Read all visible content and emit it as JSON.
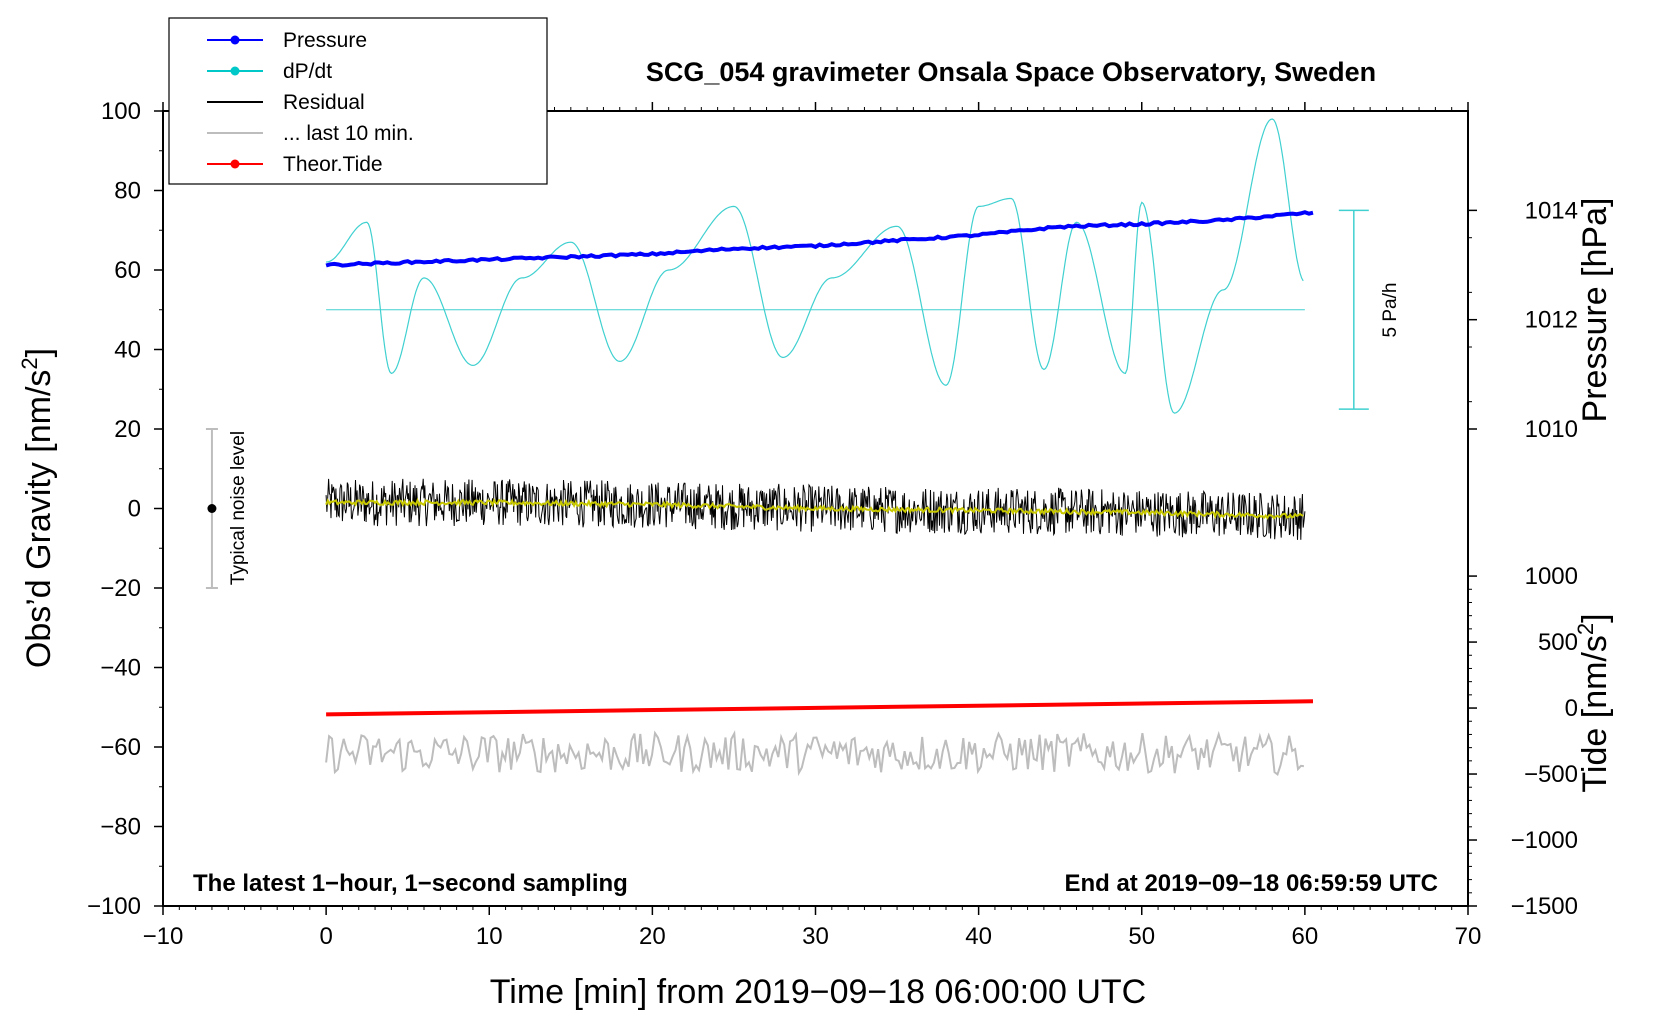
{
  "chart_data": {
    "type": "line",
    "title": "SCG_054 gravimeter Onsala Space Observatory, Sweden",
    "xlabel": "Time [min] from 2019−09−18 06:00:00 UTC",
    "ylabel": "Obs’d Gravity [nm/s",
    "ylabel_sup": "2",
    "ylabel_close": "]",
    "right_pressure_label": "Pressure [hPa]",
    "right_tide_label": "Tide [nm/s",
    "right_tide_sup": "2",
    "right_tide_close": "]",
    "xlim": [
      -10,
      70
    ],
    "ylim": [
      -100,
      100
    ],
    "xticks": [
      "−10",
      "0",
      "10",
      "20",
      "30",
      "40",
      "50",
      "60",
      "70"
    ],
    "xtick_values": [
      -10,
      0,
      10,
      20,
      30,
      40,
      50,
      60,
      70
    ],
    "yticks": [
      "−100",
      "−80",
      "−60",
      "−40",
      "−20",
      "0",
      "20",
      "40",
      "60",
      "80",
      "100"
    ],
    "ytick_values": [
      -100,
      -80,
      -60,
      -40,
      -20,
      0,
      20,
      40,
      60,
      80,
      100
    ],
    "pressure_axis": {
      "range_hPa": [
        1010,
        1014
      ],
      "ticks": [
        "1010",
        "1012",
        "1014"
      ],
      "tick_values": [
        1010,
        1012,
        1014
      ],
      "gravity_equivalent": [
        20,
        75
      ]
    },
    "tide_axis": {
      "range": [
        -1500,
        1000
      ],
      "ticks": [
        "−1500",
        "−1000",
        "−500",
        "0",
        "500",
        "1000"
      ],
      "tick_values": [
        -1500,
        -1000,
        -500,
        0,
        500,
        1000
      ],
      "gravity_equivalent": [
        -100,
        -17
      ]
    },
    "legend": [
      {
        "label": "Pressure",
        "color": "#0000ff",
        "marker": true
      },
      {
        "label": "dP/dt",
        "color": "#00c8c8",
        "marker": true
      },
      {
        "label": "Residual",
        "color": "#000000",
        "marker": false
      },
      {
        "label": "... last 10 min.",
        "color": "#bdbdbd",
        "marker": false
      },
      {
        "label": "Theor.Tide",
        "color": "#ff0000",
        "marker": true
      }
    ],
    "series": [
      {
        "name": "Pressure",
        "color": "#0000ff",
        "x": [
          0,
          5,
          10,
          15,
          20,
          25,
          30,
          35,
          40,
          45,
          50,
          55,
          60
        ],
        "y_hPa": [
          1013.0,
          1013.05,
          1013.1,
          1013.15,
          1013.2,
          1013.3,
          1013.35,
          1013.45,
          1013.55,
          1013.7,
          1013.75,
          1013.82,
          1013.95
        ]
      },
      {
        "name": "dP/dt",
        "color": "#40d0d0",
        "x": [
          0,
          2.5,
          4,
          6,
          9,
          12,
          15,
          18,
          21,
          25,
          28,
          31,
          35,
          38,
          40,
          42,
          44,
          46,
          49,
          50,
          52,
          55,
          58,
          60
        ],
        "y": [
          62,
          72,
          34,
          58,
          36,
          58,
          67,
          37,
          60,
          76,
          38,
          58,
          71,
          31,
          76,
          78,
          35,
          72,
          34,
          77,
          24,
          55,
          98,
          57
        ],
        "baseline": 50
      },
      {
        "name": "Residual",
        "color": "#000000",
        "x": [
          0,
          10,
          20,
          30,
          40,
          50,
          60
        ],
        "y": [
          1.5,
          1.5,
          1.0,
          0.0,
          -0.5,
          -1.0,
          -2.0
        ],
        "band": 6
      },
      {
        "name": "Residual smooth",
        "color": "#c8c800",
        "x": [
          0,
          10,
          20,
          30,
          40,
          50,
          60
        ],
        "y": [
          1.5,
          1.5,
          1.0,
          0.0,
          -0.5,
          -1.0,
          -2.0
        ]
      },
      {
        "name": "... last 10 min.",
        "color": "#bdbdbd",
        "x": [
          0,
          10,
          20,
          30,
          40,
          50,
          60
        ],
        "y": [
          -61.5,
          -61.5,
          -61.5,
          -61.5,
          -61.5,
          -61.5,
          -62
        ],
        "band": 5
      },
      {
        "name": "Theor.Tide",
        "color": "#ff0000",
        "x": [
          0,
          60.5
        ],
        "y": [
          -51.8,
          -48.5
        ]
      }
    ],
    "noise_bar": {
      "label": "Typical noise level",
      "x": -7,
      "y": 0,
      "y_low": -20,
      "y_high": 20
    },
    "scale_bar": {
      "label": "5 Pa/h",
      "x": 63,
      "y_low": 25,
      "y_high": 75
    },
    "annotations": {
      "left": "The latest 1−hour, 1−second sampling",
      "right": "End at 2019−09−18 06:59:59 UTC"
    }
  }
}
